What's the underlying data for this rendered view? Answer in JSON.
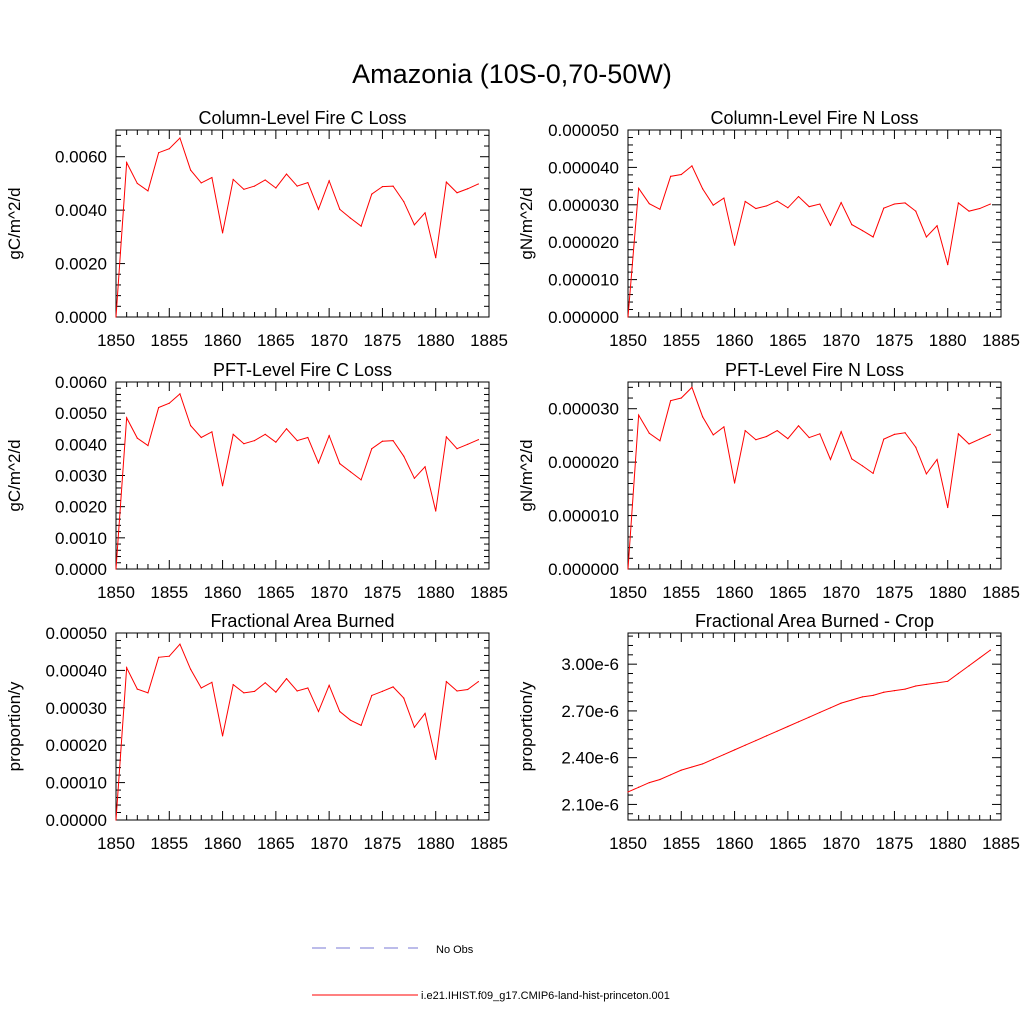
{
  "figure": {
    "title": "Amazonia (10S-0,70-50W)"
  },
  "legend": [
    {
      "label": "No Obs",
      "color": "#7a7ad6",
      "style": "dashed"
    },
    {
      "label": "i.e21.IHIST.f09_g17.CMIP6-land-hist-princeton.001",
      "color": "#ff0000",
      "style": "solid"
    }
  ],
  "chart_data": [
    {
      "type": "line",
      "title": "Column-Level Fire C Loss",
      "ylabel": "gC/m^2/d",
      "xlim": [
        1850,
        1885
      ],
      "ylim": [
        0,
        0.007
      ],
      "xticks": [
        "1850",
        "1855",
        "1860",
        "1865",
        "1870",
        "1875",
        "1880",
        "1885"
      ],
      "yticks": [
        0,
        0.002,
        0.004,
        0.006
      ],
      "ytick_labels": [
        "0.0000",
        "0.0020",
        "0.0040",
        "0.0060"
      ],
      "x": [
        1850,
        1851,
        1852,
        1853,
        1854,
        1855,
        1856,
        1857,
        1858,
        1859,
        1860,
        1861,
        1862,
        1863,
        1864,
        1865,
        1866,
        1867,
        1868,
        1869,
        1870,
        1871,
        1872,
        1873,
        1874,
        1875,
        1876,
        1877,
        1878,
        1879,
        1880,
        1881,
        1882,
        1883,
        1884
      ],
      "series": [
        {
          "name": "i.e21.IHIST.f09_g17.CMIP6-land-hist-princeton.001",
          "color": "#ff0000",
          "values": [
            0.0,
            0.00578,
            0.005,
            0.00472,
            0.00615,
            0.0063,
            0.0067,
            0.0055,
            0.00502,
            0.00522,
            0.00315,
            0.00515,
            0.00478,
            0.0049,
            0.00513,
            0.00483,
            0.00535,
            0.0049,
            0.00503,
            0.00403,
            0.0051,
            0.00403,
            0.0037,
            0.0034,
            0.0046,
            0.00488,
            0.0049,
            0.00432,
            0.00345,
            0.0039,
            0.00222,
            0.00505,
            0.00465,
            0.0048,
            0.00498
          ]
        }
      ]
    },
    {
      "type": "line",
      "title": "Column-Level Fire N Loss",
      "ylabel": "gN/m^2/d",
      "xlim": [
        1850,
        1885
      ],
      "ylim": [
        0,
        5e-05
      ],
      "xticks": [
        "1850",
        "1855",
        "1860",
        "1865",
        "1870",
        "1875",
        "1880",
        "1885"
      ],
      "yticks": [
        0,
        1e-05,
        2e-05,
        3e-05,
        4e-05,
        5e-05
      ],
      "ytick_labels": [
        "0.000000",
        "0.000010",
        "0.000020",
        "0.000030",
        "0.000040",
        "0.000050"
      ],
      "x": [
        1850,
        1851,
        1852,
        1853,
        1854,
        1855,
        1856,
        1857,
        1858,
        1859,
        1860,
        1861,
        1862,
        1863,
        1864,
        1865,
        1866,
        1867,
        1868,
        1869,
        1870,
        1871,
        1872,
        1873,
        1874,
        1875,
        1876,
        1877,
        1878,
        1879,
        1880,
        1881,
        1882,
        1883,
        1884
      ],
      "series": [
        {
          "name": "i.e21.IHIST.f09_g17.CMIP6-land-hist-princeton.001",
          "color": "#ff0000",
          "values": [
            0.0,
            3.44e-05,
            3.03e-05,
            2.88e-05,
            3.76e-05,
            3.81e-05,
            4.04e-05,
            3.43e-05,
            2.99e-05,
            3.18e-05,
            1.92e-05,
            3.09e-05,
            2.9e-05,
            2.97e-05,
            3.1e-05,
            2.92e-05,
            3.22e-05,
            2.95e-05,
            3.02e-05,
            2.45e-05,
            3.06e-05,
            2.47e-05,
            2.31e-05,
            2.14e-05,
            2.91e-05,
            3.02e-05,
            3.05e-05,
            2.83e-05,
            2.14e-05,
            2.44e-05,
            1.4e-05,
            3.05e-05,
            2.83e-05,
            2.9e-05,
            3.02e-05
          ]
        }
      ]
    },
    {
      "type": "line",
      "title": "PFT-Level Fire C Loss",
      "ylabel": "gC/m^2/d",
      "xlim": [
        1850,
        1885
      ],
      "ylim": [
        0,
        0.006
      ],
      "xticks": [
        "1850",
        "1855",
        "1860",
        "1865",
        "1870",
        "1875",
        "1880",
        "1885"
      ],
      "yticks": [
        0,
        0.001,
        0.002,
        0.003,
        0.004,
        0.005,
        0.006
      ],
      "ytick_labels": [
        "0.0000",
        "0.0010",
        "0.0020",
        "0.0030",
        "0.0040",
        "0.0050",
        "0.0060"
      ],
      "x": [
        1850,
        1851,
        1852,
        1853,
        1854,
        1855,
        1856,
        1857,
        1858,
        1859,
        1860,
        1861,
        1862,
        1863,
        1864,
        1865,
        1866,
        1867,
        1868,
        1869,
        1870,
        1871,
        1872,
        1873,
        1874,
        1875,
        1876,
        1877,
        1878,
        1879,
        1880,
        1881,
        1882,
        1883,
        1884
      ],
      "series": [
        {
          "name": "i.e21.IHIST.f09_g17.CMIP6-land-hist-princeton.001",
          "color": "#ff0000",
          "values": [
            0.0,
            0.00485,
            0.0042,
            0.00396,
            0.00518,
            0.00532,
            0.00562,
            0.0046,
            0.00422,
            0.0044,
            0.00267,
            0.00432,
            0.00402,
            0.00412,
            0.00432,
            0.00407,
            0.0045,
            0.00412,
            0.00422,
            0.0034,
            0.00428,
            0.00338,
            0.00312,
            0.00286,
            0.00386,
            0.0041,
            0.00412,
            0.00362,
            0.00291,
            0.00328,
            0.00186,
            0.00424,
            0.00386,
            0.004,
            0.00415
          ]
        }
      ]
    },
    {
      "type": "line",
      "title": "PFT-Level Fire N Loss",
      "ylabel": "gN/m^2/d",
      "xlim": [
        1850,
        1885
      ],
      "ylim": [
        0,
        3.5e-05
      ],
      "xticks": [
        "1850",
        "1855",
        "1860",
        "1865",
        "1870",
        "1875",
        "1880",
        "1885"
      ],
      "yticks": [
        0,
        1e-05,
        2e-05,
        3e-05
      ],
      "ytick_labels": [
        "0.000000",
        "0.000010",
        "0.000020",
        "0.000030"
      ],
      "x": [
        1850,
        1851,
        1852,
        1853,
        1854,
        1855,
        1856,
        1857,
        1858,
        1859,
        1860,
        1861,
        1862,
        1863,
        1864,
        1865,
        1866,
        1867,
        1868,
        1869,
        1870,
        1871,
        1872,
        1873,
        1874,
        1875,
        1876,
        1877,
        1878,
        1879,
        1880,
        1881,
        1882,
        1883,
        1884
      ],
      "series": [
        {
          "name": "i.e21.IHIST.f09_g17.CMIP6-land-hist-princeton.001",
          "color": "#ff0000",
          "values": [
            0.0,
            2.88e-05,
            2.54e-05,
            2.4e-05,
            3.15e-05,
            3.2e-05,
            3.4e-05,
            2.85e-05,
            2.51e-05,
            2.66e-05,
            1.61e-05,
            2.59e-05,
            2.42e-05,
            2.48e-05,
            2.59e-05,
            2.44e-05,
            2.68e-05,
            2.46e-05,
            2.53e-05,
            2.05e-05,
            2.57e-05,
            2.06e-05,
            1.93e-05,
            1.79e-05,
            2.43e-05,
            2.52e-05,
            2.55e-05,
            2.28e-05,
            1.78e-05,
            2.05e-05,
            1.15e-05,
            2.53e-05,
            2.34e-05,
            2.43e-05,
            2.52e-05
          ]
        }
      ]
    },
    {
      "type": "line",
      "title": "Fractional Area Burned",
      "ylabel": "proportion/y",
      "xlim": [
        1850,
        1885
      ],
      "ylim": [
        0,
        0.0005
      ],
      "xticks": [
        "1850",
        "1855",
        "1860",
        "1865",
        "1870",
        "1875",
        "1880",
        "1885"
      ],
      "yticks": [
        0,
        0.0001,
        0.0002,
        0.0003,
        0.0004,
        0.0005
      ],
      "ytick_labels": [
        "0.00000",
        "0.00010",
        "0.00020",
        "0.00030",
        "0.00040",
        "0.00050"
      ],
      "x": [
        1850,
        1851,
        1852,
        1853,
        1854,
        1855,
        1856,
        1857,
        1858,
        1859,
        1860,
        1861,
        1862,
        1863,
        1864,
        1865,
        1866,
        1867,
        1868,
        1869,
        1870,
        1871,
        1872,
        1873,
        1874,
        1875,
        1876,
        1877,
        1878,
        1879,
        1880,
        1881,
        1882,
        1883,
        1884
      ],
      "series": [
        {
          "name": "i.e21.IHIST.f09_g17.CMIP6-land-hist-princeton.001",
          "color": "#ff0000",
          "values": [
            0.0,
            0.000407,
            0.00035,
            0.00034,
            0.000435,
            0.000438,
            0.00047,
            0.000403,
            0.000353,
            0.000368,
            0.000225,
            0.000362,
            0.00034,
            0.000344,
            0.000367,
            0.000342,
            0.000378,
            0.000345,
            0.000353,
            0.00029,
            0.00036,
            0.00029,
            0.000267,
            0.000253,
            0.000333,
            0.000344,
            0.000356,
            0.000326,
            0.000248,
            0.000285,
            0.000162,
            0.00037,
            0.000345,
            0.000349,
            0.00037
          ]
        }
      ]
    },
    {
      "type": "line",
      "title": "Fractional Area Burned - Crop",
      "ylabel": "proportion/y",
      "xlim": [
        1850,
        1885
      ],
      "ylim": [
        2e-06,
        3.2e-06
      ],
      "xticks": [
        "1850",
        "1855",
        "1860",
        "1865",
        "1870",
        "1875",
        "1880",
        "1885"
      ],
      "yticks": [
        2.1e-06,
        2.4e-06,
        2.7e-06,
        3e-06
      ],
      "ytick_labels": [
        "2.10e-6",
        "2.40e-6",
        "2.70e-6",
        "3.00e-6"
      ],
      "x": [
        1850,
        1851,
        1852,
        1853,
        1854,
        1855,
        1856,
        1857,
        1858,
        1859,
        1860,
        1861,
        1862,
        1863,
        1864,
        1865,
        1866,
        1867,
        1868,
        1869,
        1870,
        1871,
        1872,
        1873,
        1874,
        1875,
        1876,
        1877,
        1878,
        1879,
        1880,
        1881,
        1882,
        1883,
        1884
      ],
      "series": [
        {
          "name": "i.e21.IHIST.f09_g17.CMIP6-land-hist-princeton.001",
          "color": "#ff0000",
          "values": [
            2.18e-06,
            2.21e-06,
            2.24e-06,
            2.26e-06,
            2.29e-06,
            2.32e-06,
            2.34e-06,
            2.36e-06,
            2.39e-06,
            2.42e-06,
            2.45e-06,
            2.48e-06,
            2.51e-06,
            2.54e-06,
            2.57e-06,
            2.6e-06,
            2.63e-06,
            2.66e-06,
            2.69e-06,
            2.72e-06,
            2.75e-06,
            2.77e-06,
            2.79e-06,
            2.8e-06,
            2.82e-06,
            2.83e-06,
            2.84e-06,
            2.86e-06,
            2.87e-06,
            2.88e-06,
            2.89e-06,
            2.94e-06,
            2.99e-06,
            3.04e-06,
            3.09e-06
          ]
        }
      ]
    }
  ]
}
